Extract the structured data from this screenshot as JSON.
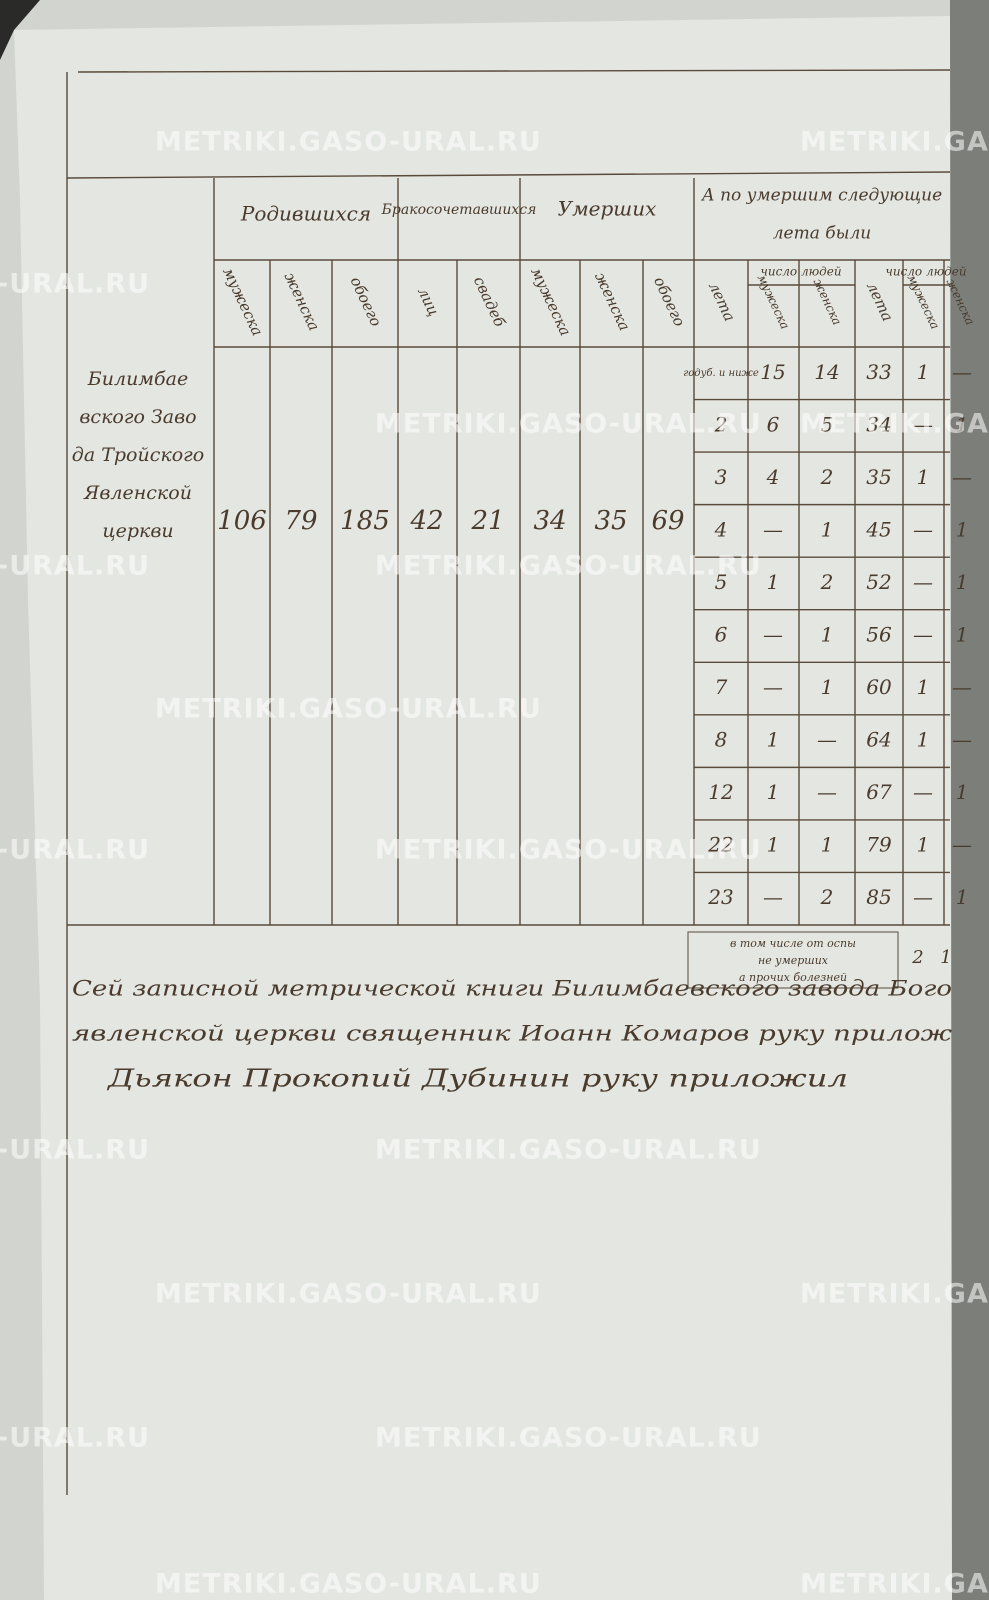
{
  "watermark": "METRIKI.GASO-URAL.RU",
  "table": {
    "headers": {
      "born": {
        "title": "Родившихся",
        "columns": [
          "мужеска",
          "женска",
          "обоего"
        ]
      },
      "married": {
        "title": "Бракосочетавшихся",
        "columns": [
          "лиц",
          "свадеб"
        ]
      },
      "died": {
        "title": "Умерших",
        "columns": [
          "мужеска",
          "женска",
          "обоего"
        ]
      },
      "ages": {
        "title": "А по умершим следующие",
        "subtitle": "лета были",
        "columns": [
          "лета",
          "число людей",
          "мужеска",
          "женска",
          "лета",
          "число людей",
          "мужеска",
          "женска"
        ]
      }
    },
    "row_label": [
      "Билимбае",
      "вского Заво",
      "да Тройского",
      "Явленской",
      "церкви"
    ],
    "values": [
      106,
      79,
      185,
      42,
      21,
      34,
      35,
      69
    ],
    "age_rows": [
      [
        "годуб. и ниже",
        15,
        14,
        33,
        1,
        "—"
      ],
      [
        2,
        6,
        5,
        34,
        "—",
        1
      ],
      [
        3,
        4,
        2,
        35,
        1,
        "—"
      ],
      [
        4,
        "—",
        1,
        45,
        "—",
        1
      ],
      [
        5,
        1,
        2,
        52,
        "—",
        1
      ],
      [
        6,
        "—",
        1,
        56,
        "—",
        1
      ],
      [
        7,
        "—",
        1,
        60,
        1,
        "—"
      ],
      [
        8,
        1,
        "—",
        64,
        1,
        "—"
      ],
      [
        12,
        1,
        "—",
        67,
        "—",
        1
      ],
      [
        22,
        1,
        1,
        79,
        1,
        "—"
      ],
      [
        23,
        "—",
        2,
        85,
        "—",
        1
      ]
    ],
    "footer_note": [
      "в том числе от оспы",
      "не умерших",
      "а прочих болезней"
    ],
    "footer_values": [
      2,
      1
    ]
  },
  "signatures": [
    "Сей записной метрической книги Билимбаевского завода Бого",
    "явленской церкви священник Иоанн Комаров руку прилож",
    "Дьякон Прокопий Дубинин руку приложил"
  ]
}
